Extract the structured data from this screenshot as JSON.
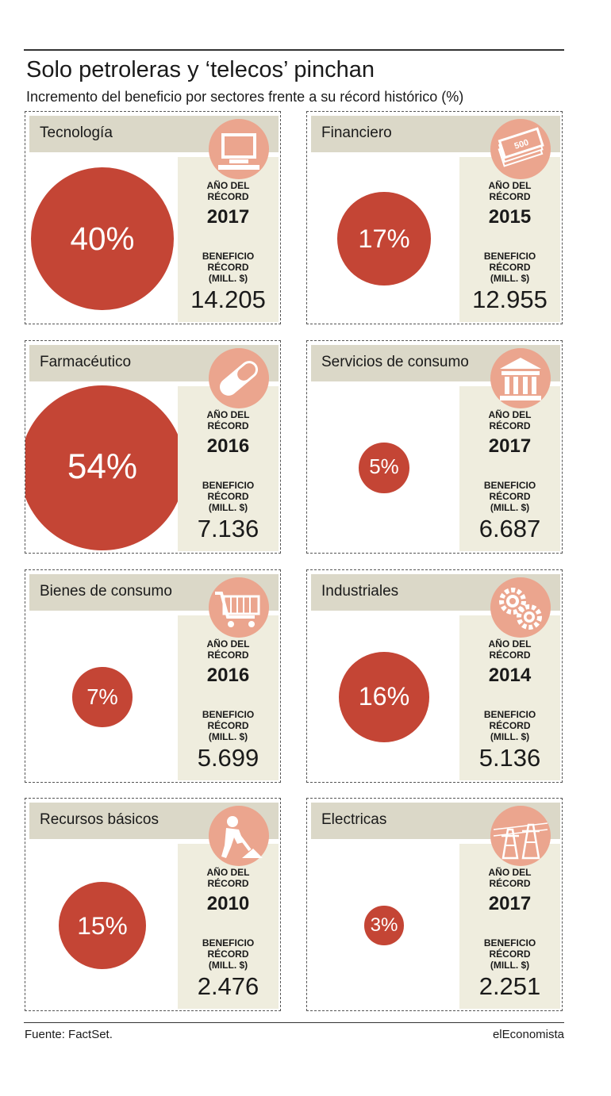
{
  "header": {
    "title": "Solo petroleras y ‘telecos’ pinchan",
    "subtitle": "Incremento del beneficio por sectores frente a su récord histórico (%)"
  },
  "labels": {
    "year_label": "AÑO DEL RÉCORD",
    "profit_label": "BENEFICIO RÉCORD (MILL. $)"
  },
  "colors": {
    "bubble": "#c44535",
    "icon_circle": "#eba58e",
    "header_band": "#dbd8c8",
    "panel": "#efedde"
  },
  "chart_data": {
    "type": "bubble",
    "title": "Solo petroleras y ‘telecos’ pinchan",
    "subtitle": "Incremento del beneficio por sectores frente a su récord histórico (%)",
    "unit": "%",
    "sectors": [
      {
        "name": "Tecnología",
        "value": 40,
        "label": "40%",
        "record_year": "2017",
        "record_profit": "14.205",
        "icon": "computer-icon"
      },
      {
        "name": "Financiero",
        "value": 17,
        "label": "17%",
        "record_year": "2015",
        "record_profit": "12.955",
        "icon": "banknotes-icon"
      },
      {
        "name": "Farmacéutico",
        "value": 54,
        "label": "54%",
        "record_year": "2016",
        "record_profit": "7.136",
        "icon": "pill-icon"
      },
      {
        "name": "Servicios de consumo",
        "value": 5,
        "label": "5%",
        "record_year": "2017",
        "record_profit": "6.687",
        "icon": "building-icon"
      },
      {
        "name": "Bienes de consumo",
        "value": 7,
        "label": "7%",
        "record_year": "2016",
        "record_profit": "5.699",
        "icon": "shopping-cart-icon"
      },
      {
        "name": "Industriales",
        "value": 16,
        "label": "16%",
        "record_year": "2014",
        "record_profit": "5.136",
        "icon": "gears-icon"
      },
      {
        "name": "Recursos básicos",
        "value": 15,
        "label": "15%",
        "record_year": "2010",
        "record_profit": "2.476",
        "icon": "miner-icon"
      },
      {
        "name": "Electricas",
        "value": 3,
        "label": "3%",
        "record_year": "2017",
        "record_profit": "2.251",
        "icon": "power-tower-icon"
      }
    ]
  },
  "footer": {
    "source": "Fuente: FactSet.",
    "brand": "elEconomista"
  }
}
